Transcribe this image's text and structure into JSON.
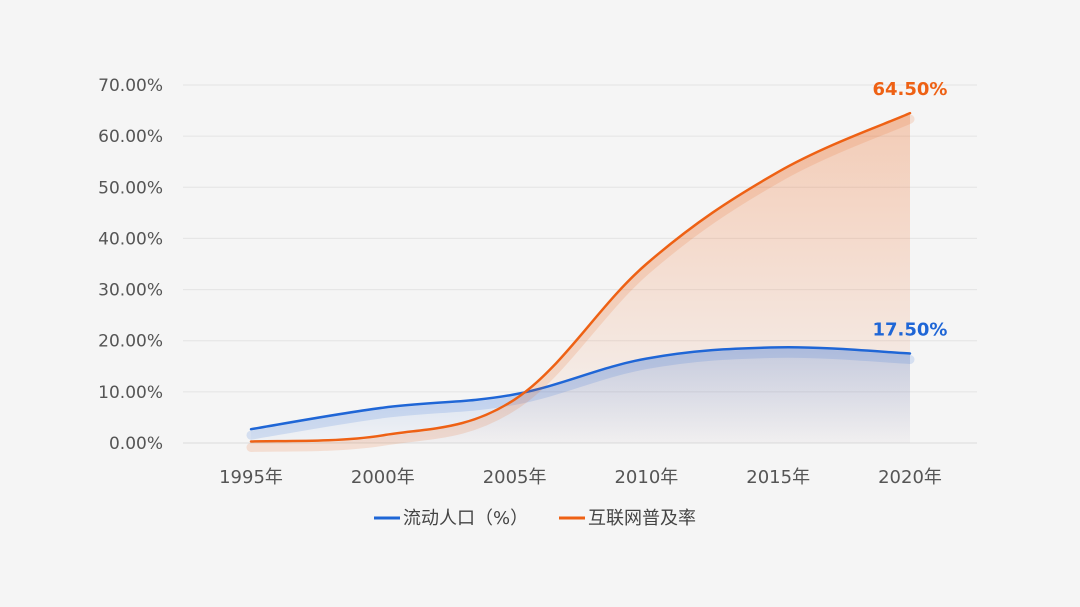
{
  "chart_data": {
    "type": "area",
    "categories": [
      "1995年",
      "2000年",
      "2005年",
      "2010年",
      "2015年",
      "2020年"
    ],
    "yticks": [
      "0.00%",
      "10.00%",
      "20.00%",
      "30.00%",
      "40.00%",
      "50.00%",
      "60.00%",
      "70.00%"
    ],
    "ylim": [
      0,
      70
    ],
    "grid": true,
    "legend_position": "bottom",
    "title": "",
    "xlabel": "",
    "ylabel": "",
    "series": [
      {
        "name": "流动人口（%）",
        "color": "#1f66d6",
        "values": [
          2.7,
          6.9,
          9.5,
          16.5,
          18.7,
          17.5
        ],
        "end_label": "17.50%"
      },
      {
        "name": "互联网普及率",
        "color": "#ee6114",
        "values": [
          0.3,
          1.5,
          8.5,
          35.0,
          53.0,
          64.5
        ],
        "end_label": "64.50%"
      }
    ]
  }
}
